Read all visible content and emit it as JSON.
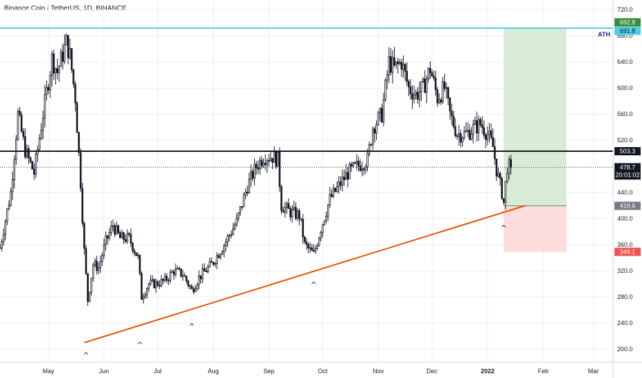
{
  "header": {
    "title": "Binance Coin / TetherUS, 1D, BINANCE"
  },
  "chart_data": {
    "type": "candlestick",
    "title": "Binance Coin / TetherUS, 1D, BINANCE",
    "ylim": [
      180,
      735
    ],
    "y_ticks": [
      720.0,
      680.0,
      640.0,
      600.0,
      560.0,
      520.0,
      480.0,
      440.0,
      400.0,
      360.0,
      320.0,
      280.0,
      240.0,
      200.0
    ],
    "y_tick_labels": [
      "720.0",
      "680.0",
      "640.0",
      "600.0",
      "560.0",
      "520.0",
      "480.0",
      "440.0",
      "400.0",
      "360.0",
      "320.0",
      "280.0",
      "240.0",
      "200.0"
    ],
    "x_range": [
      "2021-04-04",
      "2022-03-12"
    ],
    "x_ticks": [
      {
        "date": "2021-05-01",
        "label": "May",
        "bold": false
      },
      {
        "date": "2021-06-01",
        "label": "Jun",
        "bold": false
      },
      {
        "date": "2021-07-01",
        "label": "Jul",
        "bold": false
      },
      {
        "date": "2021-08-01",
        "label": "Aug",
        "bold": false
      },
      {
        "date": "2021-09-01",
        "label": "Sep",
        "bold": false
      },
      {
        "date": "2021-10-01",
        "label": "Oct",
        "bold": false
      },
      {
        "date": "2021-11-01",
        "label": "Nov",
        "bold": false
      },
      {
        "date": "2021-12-01",
        "label": "Dec",
        "bold": false
      },
      {
        "date": "2022-01-01",
        "label": "2022",
        "bold": true
      },
      {
        "date": "2022-02-01",
        "label": "Feb",
        "bold": false
      },
      {
        "date": "2022-03-01",
        "label": "Mar",
        "bold": false
      }
    ],
    "price_path": [
      [
        "2021-04-04",
        355
      ],
      [
        "2021-04-10",
        440
      ],
      [
        "2021-04-14",
        560
      ],
      [
        "2021-04-18",
        505
      ],
      [
        "2021-04-23",
        470
      ],
      [
        "2021-04-28",
        560
      ],
      [
        "2021-05-03",
        645
      ],
      [
        "2021-05-06",
        625
      ],
      [
        "2021-05-11",
        670
      ],
      [
        "2021-05-13",
        650
      ],
      [
        "2021-05-16",
        585
      ],
      [
        "2021-05-19",
        455
      ],
      [
        "2021-05-21",
        350
      ],
      [
        "2021-05-23",
        275
      ],
      [
        "2021-05-26",
        330
      ],
      [
        "2021-05-29",
        325
      ],
      [
        "2021-06-02",
        365
      ],
      [
        "2021-06-06",
        390
      ],
      [
        "2021-06-10",
        370
      ],
      [
        "2021-06-15",
        370
      ],
      [
        "2021-06-20",
        340
      ],
      [
        "2021-06-22",
        280
      ],
      [
        "2021-06-26",
        300
      ],
      [
        "2021-06-30",
        300
      ],
      [
        "2021-07-05",
        305
      ],
      [
        "2021-07-10",
        320
      ],
      [
        "2021-07-15",
        315
      ],
      [
        "2021-07-20",
        290
      ],
      [
        "2021-07-24",
        310
      ],
      [
        "2021-07-31",
        330
      ],
      [
        "2021-08-07",
        360
      ],
      [
        "2021-08-14",
        395
      ],
      [
        "2021-08-20",
        450
      ],
      [
        "2021-08-25",
        480
      ],
      [
        "2021-08-29",
        495
      ],
      [
        "2021-09-03",
        495
      ],
      [
        "2021-09-06",
        490
      ],
      [
        "2021-09-08",
        420
      ],
      [
        "2021-09-13",
        410
      ],
      [
        "2021-09-18",
        405
      ],
      [
        "2021-09-21",
        360
      ],
      [
        "2021-09-26",
        345
      ],
      [
        "2021-09-30",
        385
      ],
      [
        "2021-10-05",
        430
      ],
      [
        "2021-10-10",
        450
      ],
      [
        "2021-10-15",
        470
      ],
      [
        "2021-10-20",
        480
      ],
      [
        "2021-10-26",
        490
      ],
      [
        "2021-10-29",
        540
      ],
      [
        "2021-11-03",
        560
      ],
      [
        "2021-11-07",
        640
      ],
      [
        "2021-11-10",
        630
      ],
      [
        "2021-11-14",
        640
      ],
      [
        "2021-11-18",
        600
      ],
      [
        "2021-11-22",
        590
      ],
      [
        "2021-11-26",
        600
      ],
      [
        "2021-11-30",
        630
      ],
      [
        "2021-12-04",
        585
      ],
      [
        "2021-12-08",
        600
      ],
      [
        "2021-12-11",
        560
      ],
      [
        "2021-12-15",
        530
      ],
      [
        "2021-12-20",
        530
      ],
      [
        "2021-12-25",
        540
      ],
      [
        "2021-12-28",
        545
      ],
      [
        "2022-01-01",
        530
      ],
      [
        "2022-01-04",
        510
      ],
      [
        "2022-01-06",
        475
      ],
      [
        "2022-01-09",
        440
      ],
      [
        "2022-01-10",
        425
      ],
      [
        "2022-01-12",
        480
      ],
      [
        "2022-01-14",
        478.7
      ]
    ],
    "annotations": {
      "ath_level": 691.8,
      "ath_label": "ATH",
      "resistance_level": 503.3,
      "last_price": 478.7,
      "countdown": "20:01:02",
      "trendline": {
        "start": [
          "2021-05-21",
          210
        ],
        "end": [
          "2022-01-22",
          420
        ]
      },
      "position": {
        "start_date": "2022-01-10",
        "end_date": "2022-02-14",
        "entry": 419.6,
        "target": 692.8,
        "stop": 349.1
      },
      "price_labels": [
        {
          "value": 692.8,
          "text": "692.8",
          "bg": "#388e3c",
          "fg": "#ffffff"
        },
        {
          "value": 691.8,
          "text": "691.8",
          "bg": "#4dd0e1",
          "fg": "#131722"
        },
        {
          "value": 503.3,
          "text": "503.3",
          "bg": "#131722",
          "fg": "#ffffff"
        },
        {
          "value": 419.6,
          "text": "419.6",
          "bg": "#787b86",
          "fg": "#ffffff"
        },
        {
          "value": 349.1,
          "text": "349.1",
          "bg": "#ef5350",
          "fg": "#ffffff"
        }
      ],
      "swing_low_markers": [
        {
          "date": "2021-05-22",
          "value": 210
        },
        {
          "date": "2021-06-21",
          "value": 226
        },
        {
          "date": "2021-07-20",
          "value": 254
        },
        {
          "date": "2021-09-26",
          "value": 318
        },
        {
          "date": "2022-01-10",
          "value": 405
        }
      ],
      "marker_glyph": "^"
    },
    "colors": {
      "candle": "#131722",
      "ath_line": "#4dd0e1",
      "resistance_line": "#131722",
      "trendline": "#e65100",
      "profit_zone": "#d7ebd5",
      "loss_zone": "#fcdcdc",
      "grid": "#eceef2"
    },
    "grid": true
  }
}
